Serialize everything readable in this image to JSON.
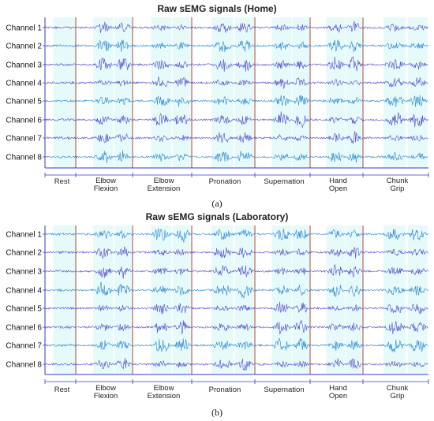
{
  "chart_data": [
    {
      "type": "line",
      "panel_label": "(a)",
      "title": "Raw sEMG signals (Home)",
      "channels": [
        "Channel 1",
        "Channel 2",
        "Channel 3",
        "Channel 4",
        "Channel 5",
        "Channel 6",
        "Channel 7",
        "Channel 8"
      ],
      "activities": [
        {
          "lines": [
            "Rest"
          ]
        },
        {
          "lines": [
            "Elbow",
            "Flexion"
          ]
        },
        {
          "lines": [
            "Elbow",
            "Extension"
          ]
        },
        {
          "lines": [
            "Pronation"
          ]
        },
        {
          "lines": [
            "Supernation"
          ]
        },
        {
          "lines": [
            "Hand",
            "Open"
          ]
        },
        {
          "lines": [
            "Chunk",
            "Grip"
          ]
        }
      ]
    },
    {
      "type": "line",
      "panel_label": "(b)",
      "title": "Raw sEMG signals (Laboratory)",
      "channels": [
        "Channel 1",
        "Channel 2",
        "Channel 3",
        "Channel 4",
        "Channel 5",
        "Channel 6",
        "Channel 7",
        "Channel 8"
      ],
      "activities": [
        {
          "lines": [
            "Rest"
          ]
        },
        {
          "lines": [
            "Elbow",
            "Flexion"
          ]
        },
        {
          "lines": [
            "Elbow",
            "Extension"
          ]
        },
        {
          "lines": [
            "Pronation"
          ]
        },
        {
          "lines": [
            "Supernation"
          ]
        },
        {
          "lines": [
            "Hand",
            "Open"
          ]
        },
        {
          "lines": [
            "Chunk",
            "Grip"
          ]
        }
      ]
    }
  ],
  "colors": {
    "signal": "#4a3fc8",
    "signal_alt": "#1f7fd0",
    "segment_bg": "#dff8f8",
    "divider": "#b04a3a",
    "axis": "#3a3acc"
  }
}
